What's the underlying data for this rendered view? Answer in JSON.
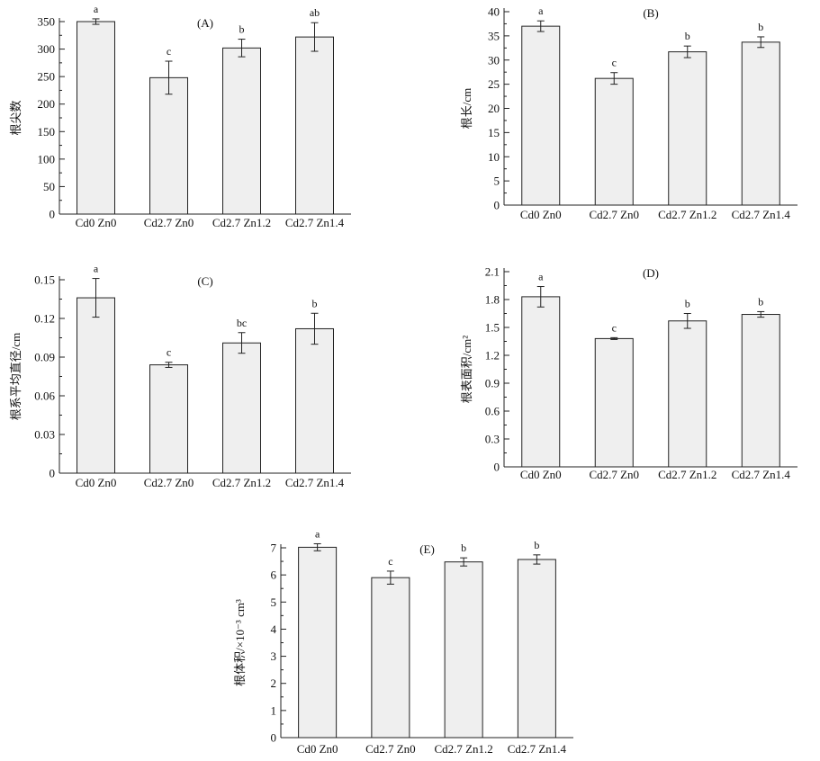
{
  "chart_data": [
    {
      "type": "bar",
      "title": "(A)",
      "ylabel": "根尖数",
      "categories": [
        "Cd0 Zn0",
        "Cd2.7 Zn0",
        "Cd2.7 Zn1.2",
        "Cd2.7 Zn1.4"
      ],
      "values": [
        350,
        248,
        302,
        322
      ],
      "errors": [
        5,
        30,
        16,
        26
      ],
      "significance": [
        "a",
        "c",
        "b",
        "ab"
      ],
      "ylim": [
        0,
        350
      ],
      "yticks": [
        "0",
        "50",
        "100",
        "150",
        "200",
        "250",
        "300",
        "350"
      ],
      "grid": false
    },
    {
      "type": "bar",
      "title": "(B)",
      "ylabel": "根长/cm",
      "categories": [
        "Cd0 Zn0",
        "Cd2.7 Zn0",
        "Cd2.7 Zn1.2",
        "Cd2.7 Zn1.4"
      ],
      "values": [
        37.0,
        26.2,
        31.7,
        33.7
      ],
      "errors": [
        1.1,
        1.2,
        1.2,
        1.1
      ],
      "significance": [
        "a",
        "c",
        "b",
        "b"
      ],
      "ylim": [
        0,
        40
      ],
      "yticks": [
        "0",
        "5",
        "10",
        "15",
        "20",
        "25",
        "30",
        "35",
        "40"
      ],
      "grid": false
    },
    {
      "type": "bar",
      "title": "(C)",
      "ylabel": "根系平均直径/cm",
      "categories": [
        "Cd0 Zn0",
        "Cd2.7 Zn0",
        "Cd2.7 Zn1.2",
        "Cd2.7 Zn1.4"
      ],
      "values": [
        0.136,
        0.084,
        0.101,
        0.112
      ],
      "errors": [
        0.015,
        0.002,
        0.008,
        0.012
      ],
      "significance": [
        "a",
        "c",
        "bc",
        "b"
      ],
      "ylim": [
        0,
        0.15
      ],
      "yticks": [
        "0",
        "0.03",
        "0.06",
        "0.09",
        "0.12",
        "0.15"
      ],
      "grid": false
    },
    {
      "type": "bar",
      "title": "(D)",
      "ylabel": "根表面积/cm²",
      "categories": [
        "Cd0 Zn0",
        "Cd2.7 Zn0",
        "Cd2.7 Zn1.2",
        "Cd2.7 Zn1.4"
      ],
      "values": [
        1.83,
        1.38,
        1.57,
        1.64
      ],
      "errors": [
        0.11,
        0.01,
        0.08,
        0.03
      ],
      "significance": [
        "a",
        "c",
        "b",
        "b"
      ],
      "ylim": [
        0,
        2.1
      ],
      "yticks": [
        "0",
        "0.3",
        "0.6",
        "0.9",
        "1.2",
        "1.5",
        "1.8",
        "2.1"
      ],
      "grid": false
    },
    {
      "type": "bar",
      "title": "(E)",
      "ylabel": "根体积/×10⁻³ cm³",
      "categories": [
        "Cd0 Zn0",
        "Cd2.7 Zn0",
        "Cd2.7 Zn1.2",
        "Cd2.7 Zn1.4"
      ],
      "values": [
        7.02,
        5.9,
        6.48,
        6.57
      ],
      "errors": [
        0.13,
        0.24,
        0.15,
        0.17
      ],
      "significance": [
        "a",
        "c",
        "b",
        "b"
      ],
      "ylim": [
        0,
        7
      ],
      "yticks": [
        "0",
        "1",
        "2",
        "3",
        "4",
        "5",
        "6",
        "7"
      ],
      "grid": false
    }
  ]
}
